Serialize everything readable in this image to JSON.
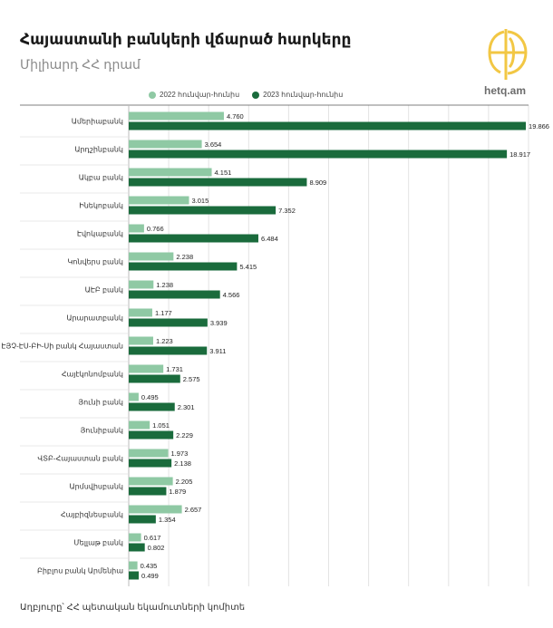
{
  "header": {
    "title": "Հայաստանի բանկերի վճարած հարկերը",
    "subtitle": "Միլիարդ ՀՀ դրամ",
    "brand": "hetq.am"
  },
  "legend": {
    "series_1": "2022 հունվար-հունիս",
    "series_2": "2023 հունվար-հունիս"
  },
  "footer": {
    "source": "Աղբյուրը՝ ՀՀ պետական եկամուտների կոմիտե"
  },
  "colors": {
    "series_1": "#8fc9a4",
    "series_2": "#1a6b3c",
    "logo": "#f2c744"
  },
  "chart_data": {
    "type": "bar",
    "orientation": "horizontal",
    "categories": [
      "Ամերիաբանկ",
      "Արդշինբանկ",
      "Ակբա բանկ",
      "Ինեկոբանկ",
      "Էվոկաբանկ",
      "Կոնվերս բանկ",
      "ԱԷԲ բանկ",
      "Արարատբանկ",
      "ԷՅՉ-ԷՍ-ԲԻ-Սի բանկ Հայաստան",
      "Հայէկոնոմբանկ",
      "Յունի բանկ",
      "Յունիբանկ",
      "ՎՏԲ-Հայաստան բանկ",
      "Արմսվիսբանկ",
      "Հայբիզնեսբանկ",
      "Մելլաթ բանկ",
      "Բիբլոս բանկ Արմենիա"
    ],
    "series": [
      {
        "name": "2022 հունվար-հունիս",
        "values": [
          4.76,
          3.654,
          4.151,
          3.015,
          0.766,
          2.238,
          1.238,
          1.177,
          1.223,
          1.731,
          0.495,
          1.051,
          1.973,
          2.205,
          2.657,
          0.617,
          0.435
        ],
        "labels": [
          "4.760",
          "3.654",
          "4.151",
          "3.015",
          "0.766",
          "2.238",
          "1.238",
          "1.177",
          "1.223",
          "1.731",
          "0.495",
          "1.051",
          "1.973",
          "2.205",
          "2.657",
          "0.617",
          "0.435"
        ]
      },
      {
        "name": "2023 հունվար-հունիս",
        "values": [
          19.866,
          18.917,
          8.909,
          7.352,
          6.484,
          5.415,
          4.566,
          3.939,
          3.911,
          2.575,
          2.301,
          2.229,
          2.138,
          1.879,
          1.354,
          0.802,
          0.499
        ],
        "labels": [
          "19.866",
          "18.917",
          "8.909",
          "7.352",
          "6.484",
          "5.415",
          "4.566",
          "3.939",
          "3.911",
          "2.575",
          "2.301",
          "2.229",
          "2.138",
          "1.879",
          "1.354",
          "0.802",
          "0.499"
        ]
      }
    ],
    "xlim": [
      0,
      20
    ],
    "grid": true,
    "legend_position": "top"
  }
}
